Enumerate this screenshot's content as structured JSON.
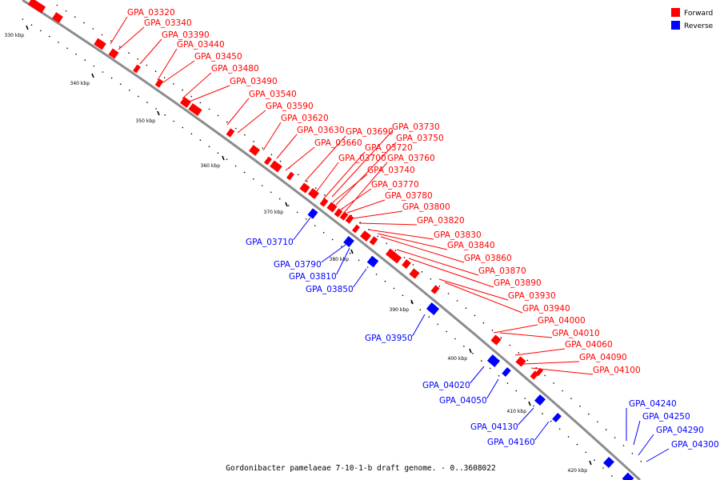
{
  "caption": "Gordonibacter pamelaeae 7-10-1-b draft genome. - 0..3608022",
  "legend": [
    {
      "label": "Forward",
      "color": "#ff0000"
    },
    {
      "label": "Reverse",
      "color": "#0000ff"
    }
  ],
  "colors": {
    "forward": "#ff0000",
    "reverse": "#0000ff",
    "backbone": "#8c8c8c"
  },
  "scale_ticks": [
    "330 kbp",
    "340 kbp",
    "350 kbp",
    "360 kbp",
    "370 kbp",
    "380 kbp",
    "390 kbp",
    "400 kbp",
    "410 kbp",
    "420 kbp"
  ],
  "forward_genes": [
    "GPA_03320",
    "GPA_03340",
    "GPA_03390",
    "GPA_03440",
    "GPA_03450",
    "GPA_03480",
    "GPA_03490",
    "GPA_03540",
    "GPA_03590",
    "GPA_03620",
    "GPA_03630",
    "GPA_03660",
    "GPA_03690",
    "GPA_03730",
    "GPA_03750",
    "GPA_03720",
    "GPA_03700",
    "GPA_03760",
    "GPA_03740",
    "GPA_03770",
    "GPA_03780",
    "GPA_03800",
    "GPA_03820",
    "GPA_03830",
    "GPA_03840",
    "GPA_03860",
    "GPA_03870",
    "GPA_03890",
    "GPA_03930",
    "GPA_03940",
    "GPA_04000",
    "GPA_04010",
    "GPA_04060",
    "GPA_04090",
    "GPA_04100"
  ],
  "reverse_genes": [
    "GPA_03710",
    "GPA_03790",
    "GPA_03810",
    "GPA_03850",
    "GPA_03950",
    "GPA_04020",
    "GPA_04050",
    "GPA_04130",
    "GPA_04160",
    "GPA_04240",
    "GPA_04250",
    "GPA_04290",
    "GPA_04300"
  ]
}
